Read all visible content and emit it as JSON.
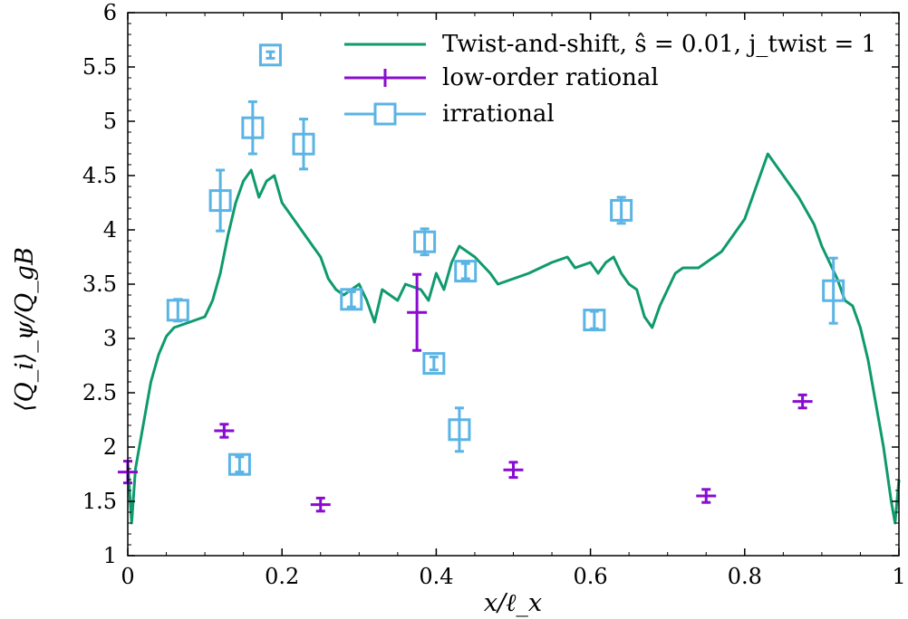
{
  "chart_data": {
    "type": "scatter",
    "xlabel": "x/ℓ_x",
    "ylabel": "⟨Q_i⟩_ψ/Q_gB",
    "xlim": [
      0,
      1
    ],
    "ylim": [
      1,
      6
    ],
    "x_ticks": [
      "0",
      "0.2",
      "0.4",
      "0.6",
      "0.8",
      "1"
    ],
    "y_ticks": [
      "1",
      "1.5",
      "2",
      "2.5",
      "3",
      "3.5",
      "4",
      "4.5",
      "5",
      "5.5",
      "6"
    ],
    "legend_position": "top-right",
    "grid": false,
    "series": [
      {
        "name": "Twist-and-shift, ŝ = 0.01, j_twist = 1",
        "kind": "line",
        "color": "#0f9a6e",
        "points": [
          [
            0.0,
            1.85
          ],
          [
            0.005,
            1.3
          ],
          [
            0.01,
            1.8
          ],
          [
            0.02,
            2.2
          ],
          [
            0.03,
            2.6
          ],
          [
            0.04,
            2.85
          ],
          [
            0.05,
            3.02
          ],
          [
            0.06,
            3.1
          ],
          [
            0.08,
            3.15
          ],
          [
            0.1,
            3.2
          ],
          [
            0.11,
            3.35
          ],
          [
            0.12,
            3.6
          ],
          [
            0.13,
            3.95
          ],
          [
            0.14,
            4.25
          ],
          [
            0.15,
            4.45
          ],
          [
            0.16,
            4.55
          ],
          [
            0.17,
            4.3
          ],
          [
            0.18,
            4.45
          ],
          [
            0.19,
            4.5
          ],
          [
            0.2,
            4.25
          ],
          [
            0.21,
            4.15
          ],
          [
            0.22,
            4.05
          ],
          [
            0.24,
            3.85
          ],
          [
            0.25,
            3.75
          ],
          [
            0.26,
            3.55
          ],
          [
            0.27,
            3.45
          ],
          [
            0.28,
            3.4
          ],
          [
            0.3,
            3.5
          ],
          [
            0.31,
            3.35
          ],
          [
            0.32,
            3.15
          ],
          [
            0.33,
            3.45
          ],
          [
            0.35,
            3.35
          ],
          [
            0.36,
            3.5
          ],
          [
            0.38,
            3.45
          ],
          [
            0.39,
            3.35
          ],
          [
            0.4,
            3.6
          ],
          [
            0.41,
            3.45
          ],
          [
            0.42,
            3.7
          ],
          [
            0.43,
            3.85
          ],
          [
            0.45,
            3.75
          ],
          [
            0.47,
            3.6
          ],
          [
            0.48,
            3.5
          ],
          [
            0.5,
            3.55
          ],
          [
            0.52,
            3.6
          ],
          [
            0.55,
            3.7
          ],
          [
            0.57,
            3.75
          ],
          [
            0.58,
            3.65
          ],
          [
            0.6,
            3.7
          ],
          [
            0.61,
            3.6
          ],
          [
            0.62,
            3.7
          ],
          [
            0.63,
            3.75
          ],
          [
            0.64,
            3.6
          ],
          [
            0.65,
            3.5
          ],
          [
            0.66,
            3.45
          ],
          [
            0.67,
            3.2
          ],
          [
            0.68,
            3.1
          ],
          [
            0.69,
            3.3
          ],
          [
            0.7,
            3.45
          ],
          [
            0.71,
            3.6
          ],
          [
            0.72,
            3.65
          ],
          [
            0.74,
            3.65
          ],
          [
            0.75,
            3.7
          ],
          [
            0.77,
            3.8
          ],
          [
            0.78,
            3.9
          ],
          [
            0.8,
            4.1
          ],
          [
            0.82,
            4.5
          ],
          [
            0.83,
            4.7
          ],
          [
            0.84,
            4.6
          ],
          [
            0.85,
            4.5
          ],
          [
            0.87,
            4.3
          ],
          [
            0.89,
            4.05
          ],
          [
            0.9,
            3.85
          ],
          [
            0.92,
            3.55
          ],
          [
            0.93,
            3.35
          ],
          [
            0.94,
            3.3
          ],
          [
            0.95,
            3.1
          ],
          [
            0.96,
            2.8
          ],
          [
            0.97,
            2.4
          ],
          [
            0.98,
            2.0
          ],
          [
            0.99,
            1.5
          ],
          [
            0.995,
            1.3
          ],
          [
            1.0,
            1.7
          ]
        ]
      },
      {
        "name": "low-order rational",
        "kind": "errorbar",
        "marker": "plus",
        "color": "#8b0bd1",
        "points": [
          {
            "x": 0.0,
            "y": 1.77,
            "err": 0.1
          },
          {
            "x": 0.125,
            "y": 2.15,
            "err": 0.06
          },
          {
            "x": 0.25,
            "y": 1.47,
            "err": 0.06
          },
          {
            "x": 0.375,
            "y": 3.24,
            "err": 0.35
          },
          {
            "x": 0.5,
            "y": 1.79,
            "err": 0.07
          },
          {
            "x": 0.75,
            "y": 1.55,
            "err": 0.06
          },
          {
            "x": 0.875,
            "y": 2.42,
            "err": 0.06
          }
        ]
      },
      {
        "name": "irrational",
        "kind": "errorbar",
        "marker": "square",
        "color": "#5ab4e5",
        "points": [
          {
            "x": 0.065,
            "y": 3.26,
            "err": 0.1
          },
          {
            "x": 0.12,
            "y": 4.27,
            "err": 0.28
          },
          {
            "x": 0.145,
            "y": 1.84,
            "err": 0.07
          },
          {
            "x": 0.162,
            "y": 4.94,
            "err": 0.24
          },
          {
            "x": 0.185,
            "y": 5.61,
            "err": 0.03
          },
          {
            "x": 0.228,
            "y": 4.79,
            "err": 0.23
          },
          {
            "x": 0.29,
            "y": 3.36,
            "err": 0.07
          },
          {
            "x": 0.385,
            "y": 3.89,
            "err": 0.12
          },
          {
            "x": 0.397,
            "y": 2.77,
            "err": 0.06
          },
          {
            "x": 0.43,
            "y": 2.16,
            "err": 0.2
          },
          {
            "x": 0.438,
            "y": 3.62,
            "err": 0.07
          },
          {
            "x": 0.605,
            "y": 3.17,
            "err": 0.08
          },
          {
            "x": 0.64,
            "y": 4.18,
            "err": 0.12
          },
          {
            "x": 0.915,
            "y": 3.44,
            "err": 0.3
          }
        ]
      }
    ]
  }
}
